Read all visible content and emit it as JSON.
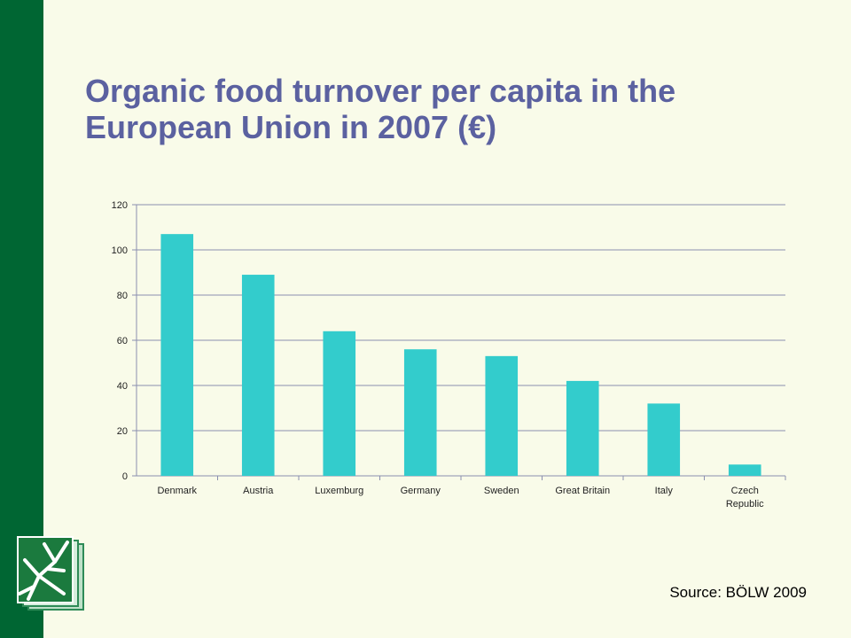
{
  "slide": {
    "title": "Organic food turnover per capita in the European Union in 2007 (€)",
    "source": "Source: BÖLW 2009",
    "colors": {
      "sidebar": "#006633",
      "bar": "#33cccc",
      "title": "#5b61a0",
      "background": "#f9fbe9"
    },
    "logo_icon": "tree-book-logo-icon"
  },
  "chart_data": {
    "type": "bar",
    "categories": [
      "Denmark",
      "Austria",
      "Luxemburg",
      "Germany",
      "Sweden",
      "Great Britain",
      "Italy",
      "Czech Republic"
    ],
    "category_label_lines": [
      [
        "Denmark"
      ],
      [
        "Austria"
      ],
      [
        "Luxemburg"
      ],
      [
        "Germany"
      ],
      [
        "Sweden"
      ],
      [
        "Great Britain"
      ],
      [
        "Italy"
      ],
      [
        "Czech",
        "Republic"
      ]
    ],
    "values": [
      107,
      89,
      64,
      56,
      53,
      42,
      32,
      5
    ],
    "yticks": [
      0,
      20,
      40,
      60,
      80,
      100,
      120
    ],
    "ylim": [
      0,
      120
    ],
    "grid": true,
    "legend": "none",
    "xlabel": "",
    "ylabel": ""
  }
}
